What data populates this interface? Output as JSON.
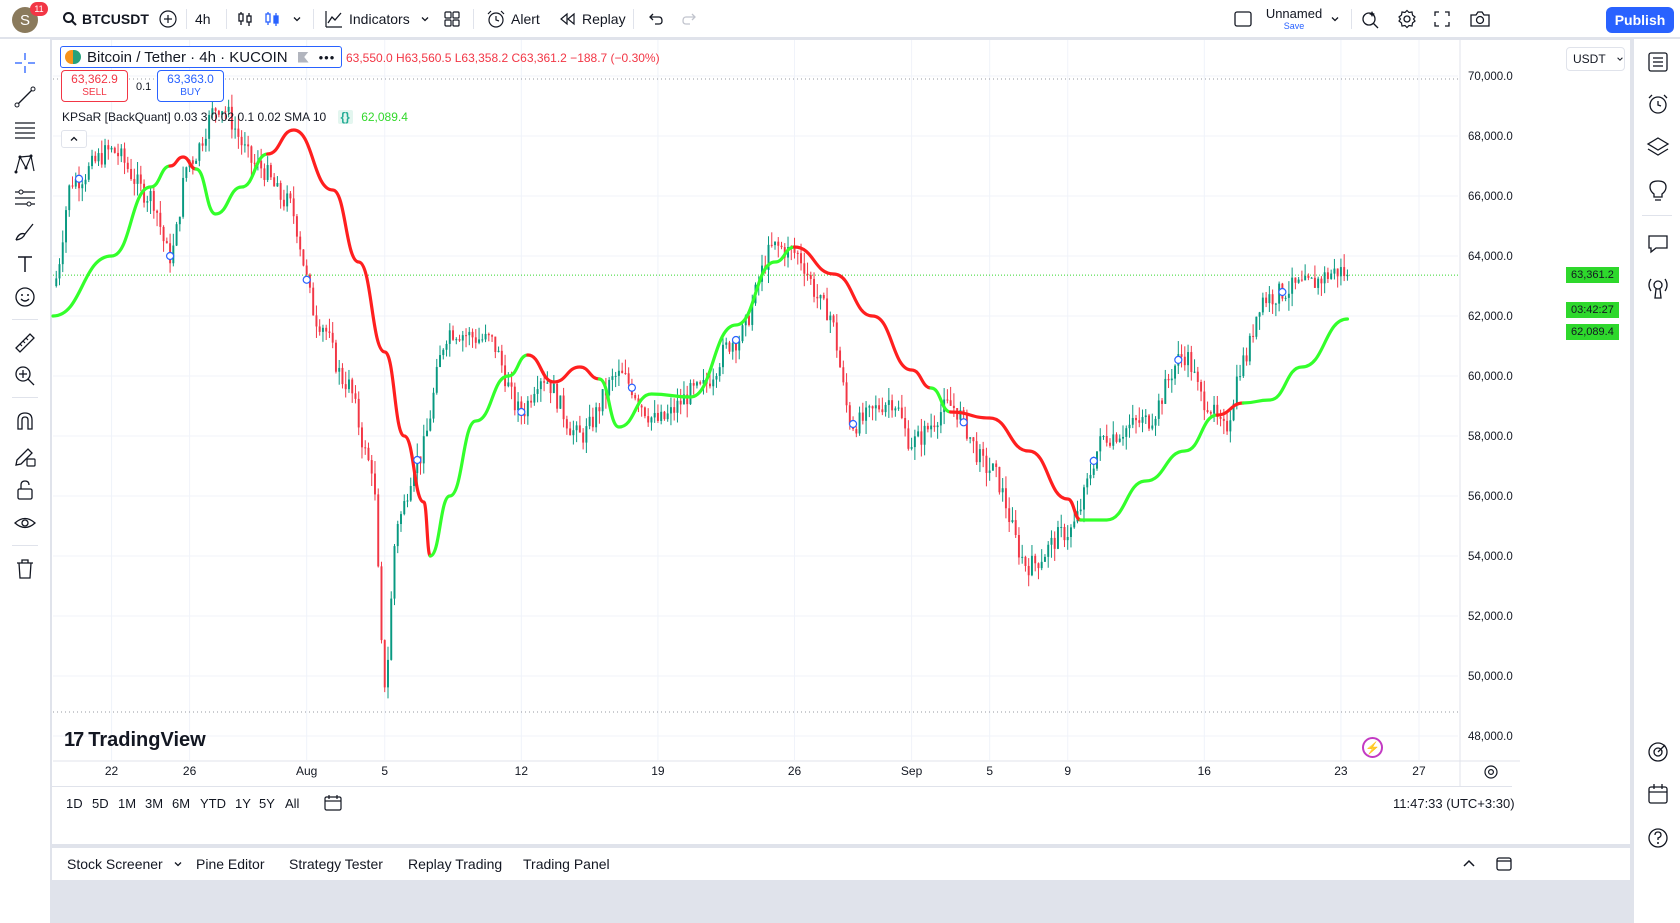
{
  "topbar": {
    "avatar_letter": "S",
    "notification_count": "11",
    "symbol": "BTCUSDT",
    "interval": "4h",
    "indicators_label": "Indicators",
    "alert_label": "Alert",
    "replay_label": "Replay",
    "layout_name": "Unnamed",
    "layout_status": "Save",
    "publish_label": "Publish"
  },
  "legend": {
    "symbol_title": "Bitcoin / Tether · 4h · KUCOIN",
    "ohlc": "63,550.0 H63,560.5 L63,358.2 C63,361.2 −188.7 (−0.30%)",
    "sell_price": "63,362.9",
    "sell_label": "SELL",
    "spread": "0.1",
    "buy_price": "63,363.0",
    "buy_label": "BUY",
    "indicator_name": "KPSaR [BackQuant] 0.03 3 0.02 0.1 0.02 SMA 10",
    "indicator_value": "62,089.4"
  },
  "price_scale": {
    "currency": "USDT",
    "current_price": "63,361.2",
    "countdown": "03:42:27",
    "indicator_price": "62,089.4"
  },
  "watermark": "TradingView",
  "time_ranges": [
    "1D",
    "5D",
    "1M",
    "3M",
    "6M",
    "YTD",
    "1Y",
    "5Y",
    "All"
  ],
  "clock": "11:47:33 (UTC+3:30)",
  "bottom_tabs": [
    "Stock Screener",
    "Pine Editor",
    "Strategy Tester",
    "Replay Trading",
    "Trading Panel"
  ],
  "colors": {
    "up": "#089981",
    "down": "#f23645",
    "sar_bull": "#33ff2b",
    "sar_bear": "#ff1f1f",
    "accent": "#2962ff"
  },
  "chart_data": {
    "type": "candlestick",
    "ylim": [
      47200,
      71200
    ],
    "y_ticks": [
      48000,
      50000,
      52000,
      54000,
      56000,
      58000,
      60000,
      62000,
      64000,
      66000,
      68000,
      70000
    ],
    "y_tick_labels": [
      "48,000.0",
      "50,000.0",
      "52,000.0",
      "54,000.0",
      "56,000.0",
      "58,000.0",
      "60,000.0",
      "62,000.0",
      "64,000.0",
      "66,000.0",
      "68,000.0",
      "70,000.0"
    ],
    "x_tick_labels": [
      "22",
      "26",
      "Aug",
      "5",
      "12",
      "19",
      "26",
      "Sep",
      "5",
      "9",
      "16",
      "23",
      "27"
    ],
    "x_ticks": [
      -24,
      0,
      36,
      60,
      102,
      144,
      186,
      222,
      246,
      270,
      312,
      354,
      378
    ],
    "x_range": [
      -42,
      390
    ],
    "last_candle_index": 356,
    "high_line": 69900,
    "low_line": 48800,
    "price_anchors": [
      [
        -42,
        63000
      ],
      [
        -36,
        66500
      ],
      [
        -24,
        67500
      ],
      [
        -12,
        66000
      ],
      [
        -6,
        64000
      ],
      [
        0,
        67200
      ],
      [
        9,
        69000
      ],
      [
        21,
        67000
      ],
      [
        30,
        65800
      ],
      [
        40,
        61800
      ],
      [
        48,
        59800
      ],
      [
        56,
        57000
      ],
      [
        60,
        49800
      ],
      [
        64,
        55200
      ],
      [
        70,
        57200
      ],
      [
        80,
        61500
      ],
      [
        92,
        61200
      ],
      [
        102,
        58800
      ],
      [
        108,
        60000
      ],
      [
        120,
        58000
      ],
      [
        132,
        60000
      ],
      [
        144,
        58500
      ],
      [
        156,
        59500
      ],
      [
        168,
        61200
      ],
      [
        180,
        64300
      ],
      [
        186,
        64100
      ],
      [
        196,
        62200
      ],
      [
        204,
        58400
      ],
      [
        216,
        59200
      ],
      [
        222,
        57800
      ],
      [
        234,
        59000
      ],
      [
        246,
        56900
      ],
      [
        258,
        53700
      ],
      [
        270,
        54800
      ],
      [
        282,
        58000
      ],
      [
        294,
        58500
      ],
      [
        306,
        60700
      ],
      [
        312,
        59200
      ],
      [
        318,
        58200
      ],
      [
        324,
        60500
      ],
      [
        330,
        62600
      ],
      [
        342,
        63000
      ],
      [
        354,
        63500
      ],
      [
        356,
        63361
      ]
    ],
    "sar": [
      {
        "trend": "bull",
        "points": [
          [
            -42,
            62000
          ],
          [
            -24,
            64000
          ],
          [
            -12,
            66300
          ],
          [
            -6,
            67000
          ]
        ]
      },
      {
        "trend": "bear",
        "points": [
          [
            -6,
            67000
          ],
          [
            -2,
            67300
          ],
          [
            2,
            66900
          ]
        ]
      },
      {
        "trend": "bull",
        "points": [
          [
            2,
            66900
          ],
          [
            8,
            65400
          ],
          [
            16,
            66300
          ],
          [
            24,
            67400
          ]
        ]
      },
      {
        "trend": "bear",
        "points": [
          [
            24,
            67400
          ],
          [
            32,
            68200
          ],
          [
            44,
            66200
          ],
          [
            52,
            63800
          ],
          [
            60,
            60800
          ],
          [
            66,
            58000
          ],
          [
            72,
            55800
          ],
          [
            74,
            54000
          ]
        ]
      },
      {
        "trend": "bull",
        "points": [
          [
            74,
            54000
          ],
          [
            80,
            56000
          ],
          [
            88,
            58500
          ],
          [
            98,
            60000
          ],
          [
            104,
            60700
          ]
        ]
      },
      {
        "trend": "bear",
        "points": [
          [
            104,
            60700
          ],
          [
            112,
            59800
          ],
          [
            120,
            60300
          ],
          [
            126,
            59900
          ]
        ]
      },
      {
        "trend": "bull",
        "points": [
          [
            126,
            59900
          ],
          [
            132,
            58300
          ],
          [
            142,
            59400
          ],
          [
            154,
            59300
          ],
          [
            168,
            61700
          ],
          [
            180,
            63800
          ],
          [
            186,
            64300
          ]
        ]
      },
      {
        "trend": "bear",
        "points": [
          [
            186,
            64300
          ],
          [
            198,
            63400
          ],
          [
            210,
            62000
          ],
          [
            222,
            60200
          ],
          [
            228,
            59600
          ]
        ]
      },
      {
        "trend": "bull",
        "points": [
          [
            228,
            59600
          ],
          [
            234,
            58800
          ]
        ]
      },
      {
        "trend": "bear",
        "points": [
          [
            234,
            58800
          ],
          [
            246,
            58600
          ],
          [
            258,
            57500
          ],
          [
            270,
            55900
          ],
          [
            274,
            55200
          ]
        ]
      },
      {
        "trend": "bull",
        "points": [
          [
            274,
            55200
          ],
          [
            282,
            55200
          ],
          [
            294,
            56500
          ],
          [
            306,
            57500
          ],
          [
            316,
            58700
          ]
        ]
      },
      {
        "trend": "bear",
        "points": [
          [
            316,
            58700
          ],
          [
            324,
            59100
          ]
        ]
      },
      {
        "trend": "bull",
        "points": [
          [
            324,
            59100
          ],
          [
            332,
            59200
          ],
          [
            342,
            60300
          ],
          [
            356,
            61900
          ]
        ]
      }
    ],
    "indicator_markers": [
      -34,
      -6,
      36,
      70,
      102,
      136,
      168,
      204,
      238,
      278,
      304,
      336
    ]
  }
}
